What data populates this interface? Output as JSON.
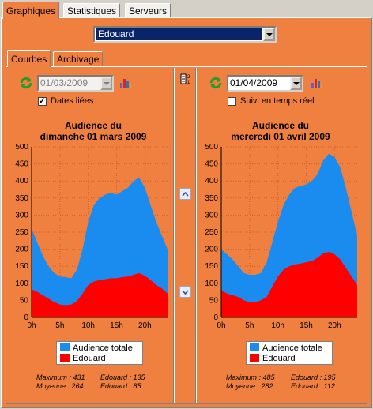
{
  "tabs_top": [
    {
      "label": "Graphiques",
      "active": true
    },
    {
      "label": "Statistiques",
      "active": false
    },
    {
      "label": "Serveurs",
      "active": false
    }
  ],
  "server_select": {
    "value": "Edouard"
  },
  "tabs_sub": [
    {
      "label": "Courbes",
      "active": true
    },
    {
      "label": "Archivage",
      "active": false
    }
  ],
  "left": {
    "date": "01/03/2009",
    "checkbox_label": "Dates liées",
    "checked": true,
    "title_line1": "Audience du",
    "title_line2": "dimanche 01 mars 2009",
    "stats": {
      "maximum": "Maximum : 431",
      "moyenne": "Moyenne : 264",
      "edouard_max": "Edouard : 135",
      "edouard_moy": "Edouard : 85"
    }
  },
  "right": {
    "date": "01/04/2009",
    "checkbox_label": "Suivi en temps réel",
    "checked": false,
    "title_line1": "Audience du",
    "title_line2": "mercredi 01 avril 2009",
    "stats": {
      "maximum": "Maximum : 485",
      "moyenne": "Moyenne : 282",
      "edouard_max": "Edouard : 195",
      "edouard_moy": "Edouard : 112"
    }
  },
  "legend": {
    "total": "Audience totale",
    "edouard": "Edouard"
  },
  "colors": {
    "total": "#1a8cf0",
    "edouard": "#ff0000",
    "frame": "#f08040",
    "plot_bg": "#f08040"
  },
  "chart_data": [
    {
      "type": "area",
      "title": "Audience du dimanche 01 mars 2009",
      "xlabel": "",
      "ylabel": "",
      "x_ticks": [
        "0h",
        "5h",
        "10h",
        "15h",
        "20h"
      ],
      "y_ticks": [
        0,
        50,
        100,
        150,
        200,
        250,
        300,
        350,
        400,
        450,
        500
      ],
      "ylim": [
        0,
        500
      ],
      "xlim": [
        0,
        24
      ],
      "grid": true,
      "x": [
        0,
        1,
        2,
        3,
        4,
        5,
        6,
        7,
        8,
        9,
        10,
        11,
        12,
        13,
        14,
        15,
        16,
        17,
        18,
        19,
        20,
        21,
        22,
        23,
        24
      ],
      "series": [
        {
          "name": "Audience totale",
          "values": [
            260,
            220,
            180,
            150,
            130,
            120,
            118,
            115,
            140,
            200,
            280,
            330,
            350,
            360,
            365,
            360,
            370,
            380,
            400,
            410,
            380,
            330,
            280,
            240,
            200
          ]
        },
        {
          "name": "Edouard",
          "values": [
            82,
            75,
            65,
            55,
            45,
            38,
            36,
            38,
            48,
            70,
            95,
            105,
            110,
            112,
            115,
            115,
            118,
            120,
            125,
            130,
            122,
            110,
            95,
            85,
            70
          ]
        }
      ]
    },
    {
      "type": "area",
      "title": "Audience du mercredi 01 avril 2009",
      "xlabel": "",
      "ylabel": "",
      "x_ticks": [
        "0h",
        "5h",
        "10h",
        "15h",
        "20h"
      ],
      "y_ticks": [
        0,
        50,
        100,
        150,
        200,
        250,
        300,
        350,
        400,
        450,
        500
      ],
      "ylim": [
        0,
        500
      ],
      "xlim": [
        0,
        24
      ],
      "grid": true,
      "x": [
        0,
        1,
        2,
        3,
        4,
        5,
        6,
        7,
        8,
        9,
        10,
        11,
        12,
        13,
        14,
        15,
        16,
        17,
        18,
        19,
        20,
        21,
        22,
        23,
        24
      ],
      "series": [
        {
          "name": "Audience totale",
          "values": [
            200,
            185,
            170,
            150,
            130,
            125,
            125,
            130,
            160,
            220,
            280,
            330,
            360,
            380,
            385,
            390,
            400,
            420,
            460,
            480,
            470,
            440,
            380,
            310,
            240
          ]
        },
        {
          "name": "Edouard",
          "values": [
            80,
            70,
            65,
            60,
            50,
            45,
            45,
            50,
            60,
            90,
            120,
            140,
            150,
            155,
            158,
            162,
            165,
            175,
            188,
            192,
            185,
            170,
            145,
            120,
            95
          ]
        }
      ]
    }
  ]
}
